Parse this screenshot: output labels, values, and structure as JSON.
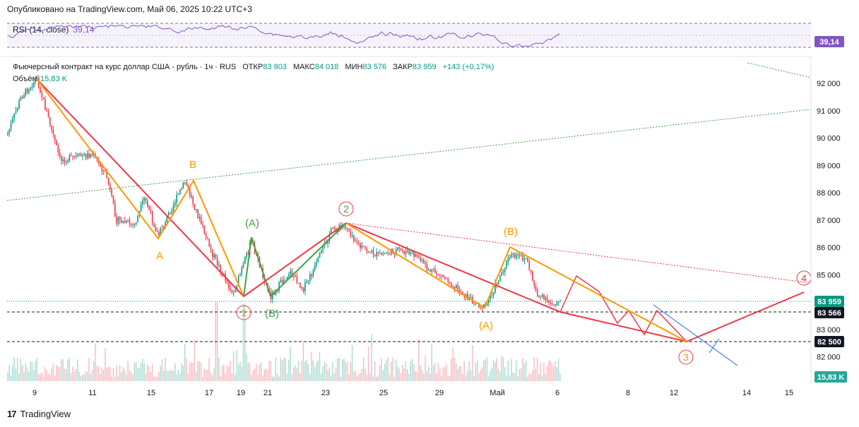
{
  "published": "Опубликовано на TradingView.com, Май 06, 2025 10:22 UTC+3",
  "rsi": {
    "label": "RSI (14, close)",
    "value": "39,14",
    "badge": "39,14",
    "color": "#7e57c2"
  },
  "legend": {
    "title": "Фьючерсный контракт на курс доллар США - рубль · 1ч · RUS",
    "open_label": "ОТКР",
    "open": "83 803",
    "high_label": "МАКС",
    "high": "84 018",
    "low_label": "МИН",
    "low": "83 576",
    "close_label": "ЗАКР",
    "close": "83 959",
    "change": "+143 (+0,17%)"
  },
  "volume": {
    "label": "Объём",
    "value": "15,83 K",
    "badge": "15,83 K"
  },
  "footer": {
    "brand": "TradingView",
    "logo": "17"
  },
  "colors": {
    "up": "#089981",
    "down": "#f23645",
    "red_wave": "#f23645",
    "orange_wave": "#ff9800",
    "green_wave": "#43a047",
    "blue": "#2962ff"
  },
  "chart_data": {
    "type": "candlestick",
    "y_ticks": [
      "92 000",
      "91 000",
      "90 000",
      "89 000",
      "88 000",
      "87 000",
      "86 000",
      "85 000",
      "84 000",
      "83 000",
      "82 000"
    ],
    "x_ticks": [
      "9",
      "11",
      "15",
      "17",
      "19",
      "21",
      "23",
      "25",
      "29",
      "Май",
      "6",
      "8",
      "12",
      "14",
      "15"
    ],
    "price_badges": [
      {
        "label": "83 959",
        "value": 83959,
        "style": "current"
      },
      {
        "label": "83 566",
        "value": 83566,
        "style": "level"
      },
      {
        "label": "82 500",
        "value": 82500,
        "style": "level"
      }
    ],
    "wave_labels": [
      {
        "text": "A",
        "color": "orange"
      },
      {
        "text": "B",
        "color": "orange"
      },
      {
        "text": "(A)",
        "color": "green"
      },
      {
        "text": "(B)",
        "color": "green"
      },
      {
        "text": "(A)",
        "color": "orange"
      },
      {
        "text": "(B)",
        "color": "orange"
      },
      {
        "text": "1",
        "color": "red"
      },
      {
        "text": "2",
        "color": "red"
      },
      {
        "text": "3",
        "color": "red"
      },
      {
        "text": "4",
        "color": "red"
      }
    ],
    "close_path": [
      {
        "x": "Apr 8",
        "y": 90100
      },
      {
        "x": "Apr 8.5",
        "y": 91500
      },
      {
        "x": "Apr 9",
        "y": 92200
      },
      {
        "x": "Apr 10",
        "y": 89200
      },
      {
        "x": "Apr 11",
        "y": 89400
      },
      {
        "x": "Apr 12",
        "y": 88700
      },
      {
        "x": "Apr 13",
        "y": 87000
      },
      {
        "x": "Apr 14",
        "y": 86800
      },
      {
        "x": "Apr 14.5",
        "y": 87800
      },
      {
        "x": "Apr 15",
        "y": 86400
      },
      {
        "x": "Apr 16",
        "y": 87300
      },
      {
        "x": "Apr 16.5",
        "y": 88400
      },
      {
        "x": "Apr 17",
        "y": 87600
      },
      {
        "x": "Apr 18",
        "y": 85800
      },
      {
        "x": "Apr 19",
        "y": 84300
      },
      {
        "x": "Apr 19.5",
        "y": 86200
      },
      {
        "x": "Apr 20",
        "y": 84200
      },
      {
        "x": "Apr 21",
        "y": 85100
      },
      {
        "x": "Apr 22",
        "y": 84500
      },
      {
        "x": "Apr 22.5",
        "y": 85200
      },
      {
        "x": "Apr 23",
        "y": 86600
      },
      {
        "x": "Apr 23.5",
        "y": 86800
      },
      {
        "x": "Apr 24",
        "y": 86000
      },
      {
        "x": "Apr 25",
        "y": 85700
      },
      {
        "x": "Apr 26",
        "y": 85900
      },
      {
        "x": "Apr 27",
        "y": 85700
      },
      {
        "x": "Apr 28",
        "y": 85200
      },
      {
        "x": "Apr 29",
        "y": 84900
      },
      {
        "x": "Apr 30",
        "y": 84200
      },
      {
        "x": "Apr 30.5",
        "y": 83800
      },
      {
        "x": "May 1",
        "y": 85700
      },
      {
        "x": "May 2",
        "y": 85600
      },
      {
        "x": "May 3",
        "y": 84300
      },
      {
        "x": "May 4",
        "y": 84000
      },
      {
        "x": "May 5",
        "y": 83959
      }
    ]
  }
}
